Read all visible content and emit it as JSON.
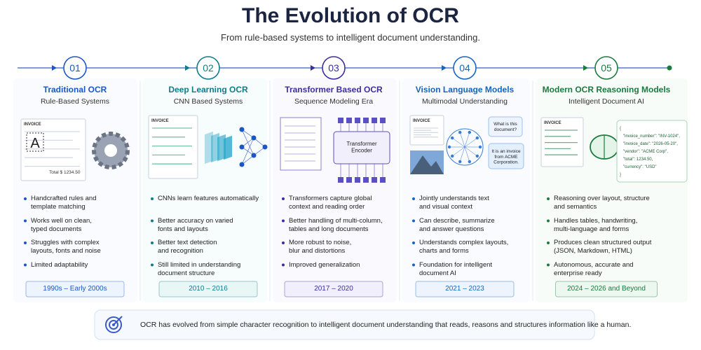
{
  "header": {
    "title": "The Evolution of OCR",
    "subtitle": "From rule-based systems to intelligent document understanding."
  },
  "stages": [
    {
      "number": "01",
      "title": "Traditional OCR",
      "subtitle": "Rule-Based Systems",
      "bullets": [
        "Handcrafted rules and\ntemplate matching",
        "Works well on clean,\ntyped documents",
        "Struggles with complex\nlayouts, fonts and noise",
        "Limited adaptability"
      ],
      "period": "1990s – Early 2000s"
    },
    {
      "number": "02",
      "title": "Deep Learning OCR",
      "subtitle": "CNN Based Systems",
      "bullets": [
        "CNNs learn features automatically",
        "Better accuracy on varied\nfonts and layouts",
        "Better text detection\nand recognition",
        "Still limited in understanding\ndocument structure"
      ],
      "period": "2010 – 2016"
    },
    {
      "number": "03",
      "title": "Transformer Based OCR",
      "subtitle": "Sequence Modeling Era",
      "bullets": [
        "Transformers capture global\ncontext and reading order",
        "Better handling of multi-column,\ntables and long documents",
        "More robust to noise,\nblur and distortions",
        "Improved generalization"
      ],
      "period": "2017 – 2020"
    },
    {
      "number": "04",
      "title": "Vision Language Models",
      "subtitle": "Multimodal Understanding",
      "bullets": [
        "Jointly understands text\nand visual context",
        "Can describe, summarize\nand answer questions",
        "Understands complex layouts,\ncharts and forms",
        "Foundation for intelligent\ndocument AI"
      ],
      "period": "2021 – 2023"
    },
    {
      "number": "05",
      "title": "Modern OCR Reasoning Models",
      "subtitle": "Intelligent Document AI",
      "bullets": [
        "Reasoning over layout, structure\nand semantics",
        "Handles tables, handwriting,\nmulti-language and forms",
        "Produces clean structured output\n(JSON, Markdown, HTML)",
        "Autonomous, accurate and\nenterprise ready"
      ],
      "period": "2024 – 2026 and Beyond"
    }
  ],
  "illustrations": {
    "invoice_label": "INVOICE",
    "letter": "A",
    "invoice_total": "Total   $ 1234.50",
    "encoder": "Transformer\nEncoder",
    "question": "What is this\ndocument?",
    "answer": "It is an invoice\nfrom ACME\nCorporation.",
    "json": [
      "{",
      "\"invoice_number\": \"INV-1024\",",
      "\"invoice_date\": \"2026-05-20\",",
      "\"vendor\": \"ACME Corp\",",
      "\"total\": 1234.50,",
      "\"currency\": \"USD\"",
      "}"
    ]
  },
  "footer": {
    "text": "OCR has evolved from simple character recognition to intelligent document understanding that reads, reasons and structures information like a human."
  }
}
